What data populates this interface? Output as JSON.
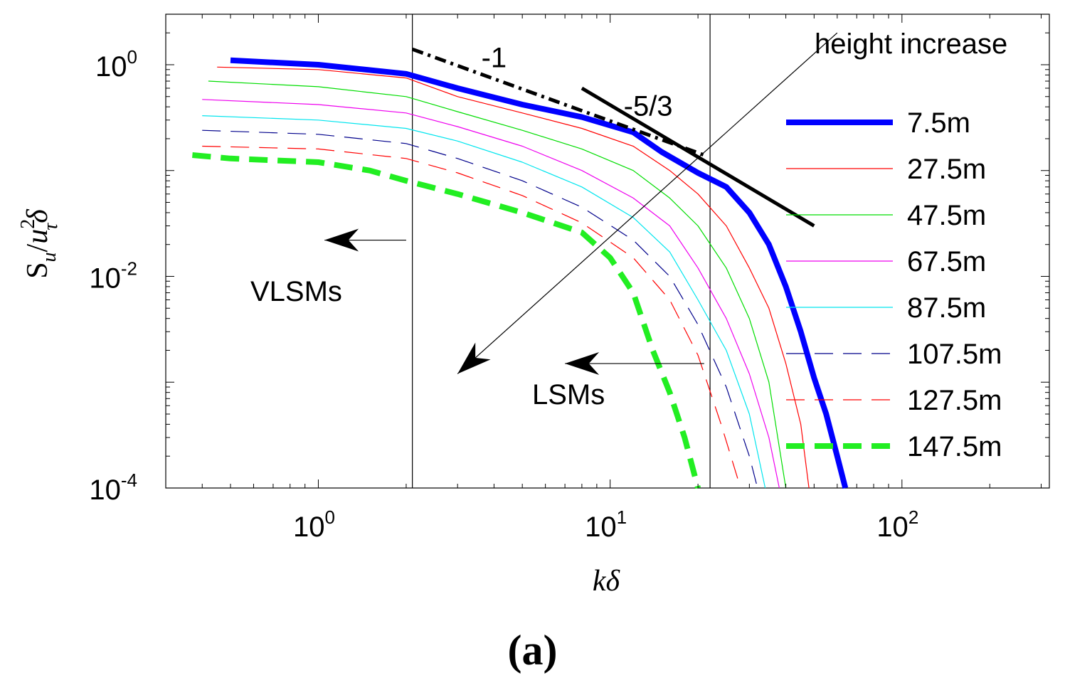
{
  "chart_data": {
    "type": "line",
    "xscale": "log",
    "yscale": "log",
    "xlim": [
      0.3,
      320
    ],
    "ylim": [
      0.0001,
      3
    ],
    "xlabel": "kδ",
    "ylabel": "S_u/u_τ²δ",
    "xticks": [
      {
        "value": 1,
        "base": "10",
        "exp": "0"
      },
      {
        "value": 10,
        "base": "10",
        "exp": "1"
      },
      {
        "value": 100,
        "base": "10",
        "exp": "2"
      }
    ],
    "yticks": [
      {
        "value": 1,
        "base": "10",
        "exp": "0"
      },
      {
        "value": 0.01,
        "base": "10",
        "exp": "-2"
      },
      {
        "value": 0.0001,
        "base": "10",
        "exp": "-4"
      }
    ],
    "series": [
      {
        "name": "7.5m",
        "color": "#0000ff",
        "style": "solid-thick",
        "x": [
          0.5,
          1,
          2,
          3,
          5,
          8,
          12,
          15,
          20,
          25,
          30,
          35,
          40,
          45,
          50,
          55,
          60,
          64
        ],
        "y": [
          1.1,
          1.0,
          0.82,
          0.6,
          0.42,
          0.32,
          0.23,
          0.15,
          0.095,
          0.07,
          0.04,
          0.02,
          0.008,
          0.003,
          0.0011,
          0.0005,
          0.0002,
          0.0001
        ]
      },
      {
        "name": "27.5m",
        "color": "#ff0000",
        "style": "solid-thin",
        "x": [
          0.45,
          1,
          2,
          3,
          5,
          8,
          12,
          16,
          20,
          25,
          30,
          35,
          40,
          45,
          48
        ],
        "y": [
          0.95,
          0.9,
          0.75,
          0.5,
          0.35,
          0.25,
          0.17,
          0.1,
          0.06,
          0.03,
          0.012,
          0.005,
          0.0015,
          0.0004,
          0.0001
        ]
      },
      {
        "name": "47.5m",
        "color": "#00dd00",
        "style": "solid-thin",
        "x": [
          0.42,
          1,
          2,
          3,
          5,
          8,
          12,
          16,
          20,
          25,
          30,
          35,
          40
        ],
        "y": [
          0.7,
          0.62,
          0.5,
          0.36,
          0.24,
          0.16,
          0.1,
          0.055,
          0.03,
          0.012,
          0.004,
          0.001,
          0.0001
        ]
      },
      {
        "name": "67.5m",
        "color": "#ee00ee",
        "style": "solid-thin",
        "x": [
          0.4,
          1,
          2,
          3,
          5,
          8,
          12,
          16,
          20,
          25,
          30,
          35,
          38
        ],
        "y": [
          0.47,
          0.42,
          0.35,
          0.26,
          0.17,
          0.1,
          0.055,
          0.03,
          0.012,
          0.004,
          0.0012,
          0.0003,
          0.0001
        ]
      },
      {
        "name": "87.5m",
        "color": "#00e5ee",
        "style": "solid-thin",
        "x": [
          0.4,
          1,
          2,
          3,
          5,
          8,
          12,
          16,
          20,
          25,
          30,
          34
        ],
        "y": [
          0.33,
          0.3,
          0.25,
          0.19,
          0.12,
          0.07,
          0.036,
          0.017,
          0.006,
          0.002,
          0.0005,
          0.0001
        ]
      },
      {
        "name": "107.5m",
        "color": "#00008b",
        "style": "dashed-thin",
        "x": [
          0.4,
          1,
          2,
          3,
          5,
          8,
          12,
          16,
          20,
          25,
          30,
          32
        ],
        "y": [
          0.24,
          0.22,
          0.18,
          0.13,
          0.08,
          0.045,
          0.022,
          0.01,
          0.0035,
          0.0009,
          0.0002,
          0.0001
        ]
      },
      {
        "name": "127.5m",
        "color": "#ff0000",
        "style": "dashed-thin",
        "x": [
          0.4,
          1,
          2,
          3,
          5,
          8,
          12,
          16,
          20,
          24,
          28
        ],
        "y": [
          0.17,
          0.16,
          0.13,
          0.095,
          0.058,
          0.032,
          0.015,
          0.006,
          0.0018,
          0.0004,
          0.0001
        ]
      },
      {
        "name": "147.5m",
        "color": "#22ee22",
        "style": "dashed-thick",
        "x": [
          0.37,
          0.5,
          1,
          1.5,
          2,
          3,
          5,
          8,
          10,
          12,
          14,
          16,
          18,
          20
        ],
        "y": [
          0.14,
          0.13,
          0.12,
          0.1,
          0.08,
          0.06,
          0.04,
          0.026,
          0.015,
          0.007,
          0.002,
          0.0008,
          0.0003,
          0.0001
        ]
      },
      {
        "name": "-1 slope",
        "color": "#000000",
        "style": "dashed-guide",
        "x": [
          2.1,
          21
        ],
        "y": [
          1.4,
          0.14
        ]
      },
      {
        "name": "-5/3 slope",
        "color": "#000000",
        "style": "solid-guide",
        "x": [
          8,
          50
        ],
        "y": [
          0.6,
          0.03
        ]
      }
    ],
    "guides": [
      {
        "type": "vline",
        "x": 2.1
      },
      {
        "type": "vline",
        "x": 22
      }
    ],
    "annotations": [
      {
        "text": "height increase",
        "kind": "arrow-text",
        "from_x": 60,
        "from_y": 2.0,
        "to_x": 3.0,
        "to_y": 0.0012
      },
      {
        "text": "-1",
        "kind": "text",
        "x": 4.0,
        "y": 0.95
      },
      {
        "text": "-5/3",
        "kind": "text",
        "x": 13.5,
        "y": 0.33
      },
      {
        "text": "VLSMs",
        "kind": "arrow-text",
        "from_x": 2.0,
        "from_y": 0.022,
        "to_x": 1.05,
        "to_y": 0.022
      },
      {
        "text": "LSMs",
        "kind": "arrow-text",
        "from_x": 21,
        "from_y": 0.0015,
        "to_x": 7.0,
        "to_y": 0.0015
      }
    ],
    "legend_position": "right"
  },
  "panel_label": "(a)"
}
